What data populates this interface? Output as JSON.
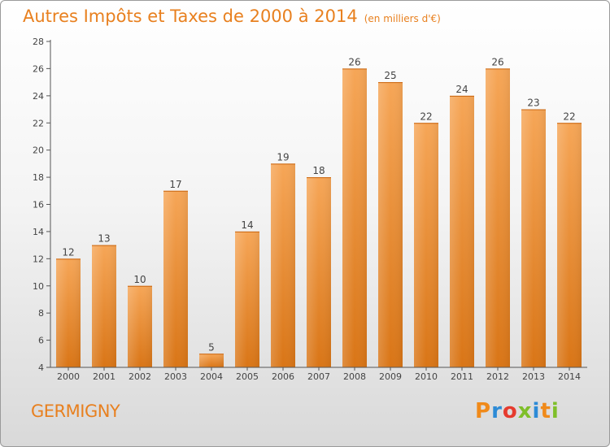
{
  "header": {
    "title": "Autres Impôts et Taxes de 2000 à 2014",
    "unit": "(en milliers d'€)"
  },
  "footer": {
    "commune": "GERMIGNY",
    "logo": "Proxiti"
  },
  "colors": {
    "bar_top": "#f6a657",
    "bar_bottom": "#d97516",
    "text_accent": "#e8801f",
    "axis": "#555555"
  },
  "chart_data": {
    "type": "bar",
    "title": "Autres Impôts et Taxes de 2000 à 2014",
    "subtitle": "(en milliers d'€)",
    "xlabel": "",
    "ylabel": "",
    "categories": [
      "2000",
      "2001",
      "2002",
      "2003",
      "2004",
      "2005",
      "2006",
      "2007",
      "2008",
      "2009",
      "2010",
      "2011",
      "2012",
      "2013",
      "2014"
    ],
    "values": [
      12,
      13,
      10,
      17,
      5,
      14,
      19,
      18,
      26,
      25,
      22,
      24,
      26,
      23,
      22
    ],
    "ylim": [
      4,
      28
    ],
    "yticks": [
      4,
      6,
      8,
      10,
      12,
      14,
      16,
      18,
      20,
      22,
      24,
      26,
      28
    ],
    "grid": false,
    "data_labels": true
  }
}
